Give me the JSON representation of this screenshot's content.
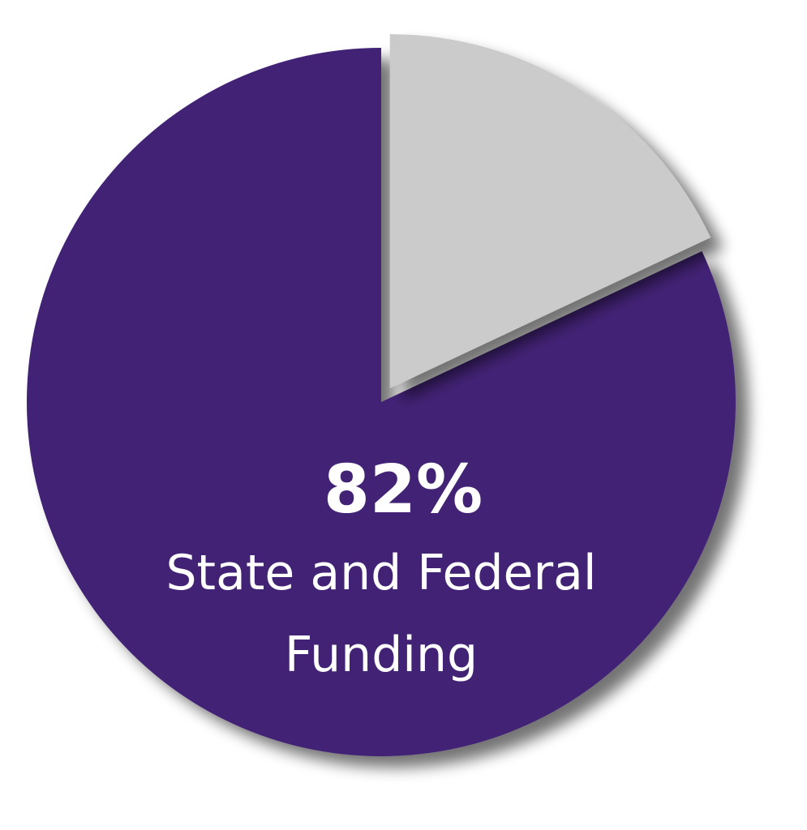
{
  "chart_data": {
    "type": "pie",
    "slices": [
      {
        "label": "State and Federal Funding",
        "value": 82,
        "color": "#422175",
        "exploded": false
      },
      {
        "label": "",
        "value": 18,
        "color": "#cbcbcb",
        "exploded": true
      }
    ],
    "annotation": {
      "value_text": "82%",
      "label_line1": "State and Federal",
      "label_line2": "Funding"
    }
  }
}
